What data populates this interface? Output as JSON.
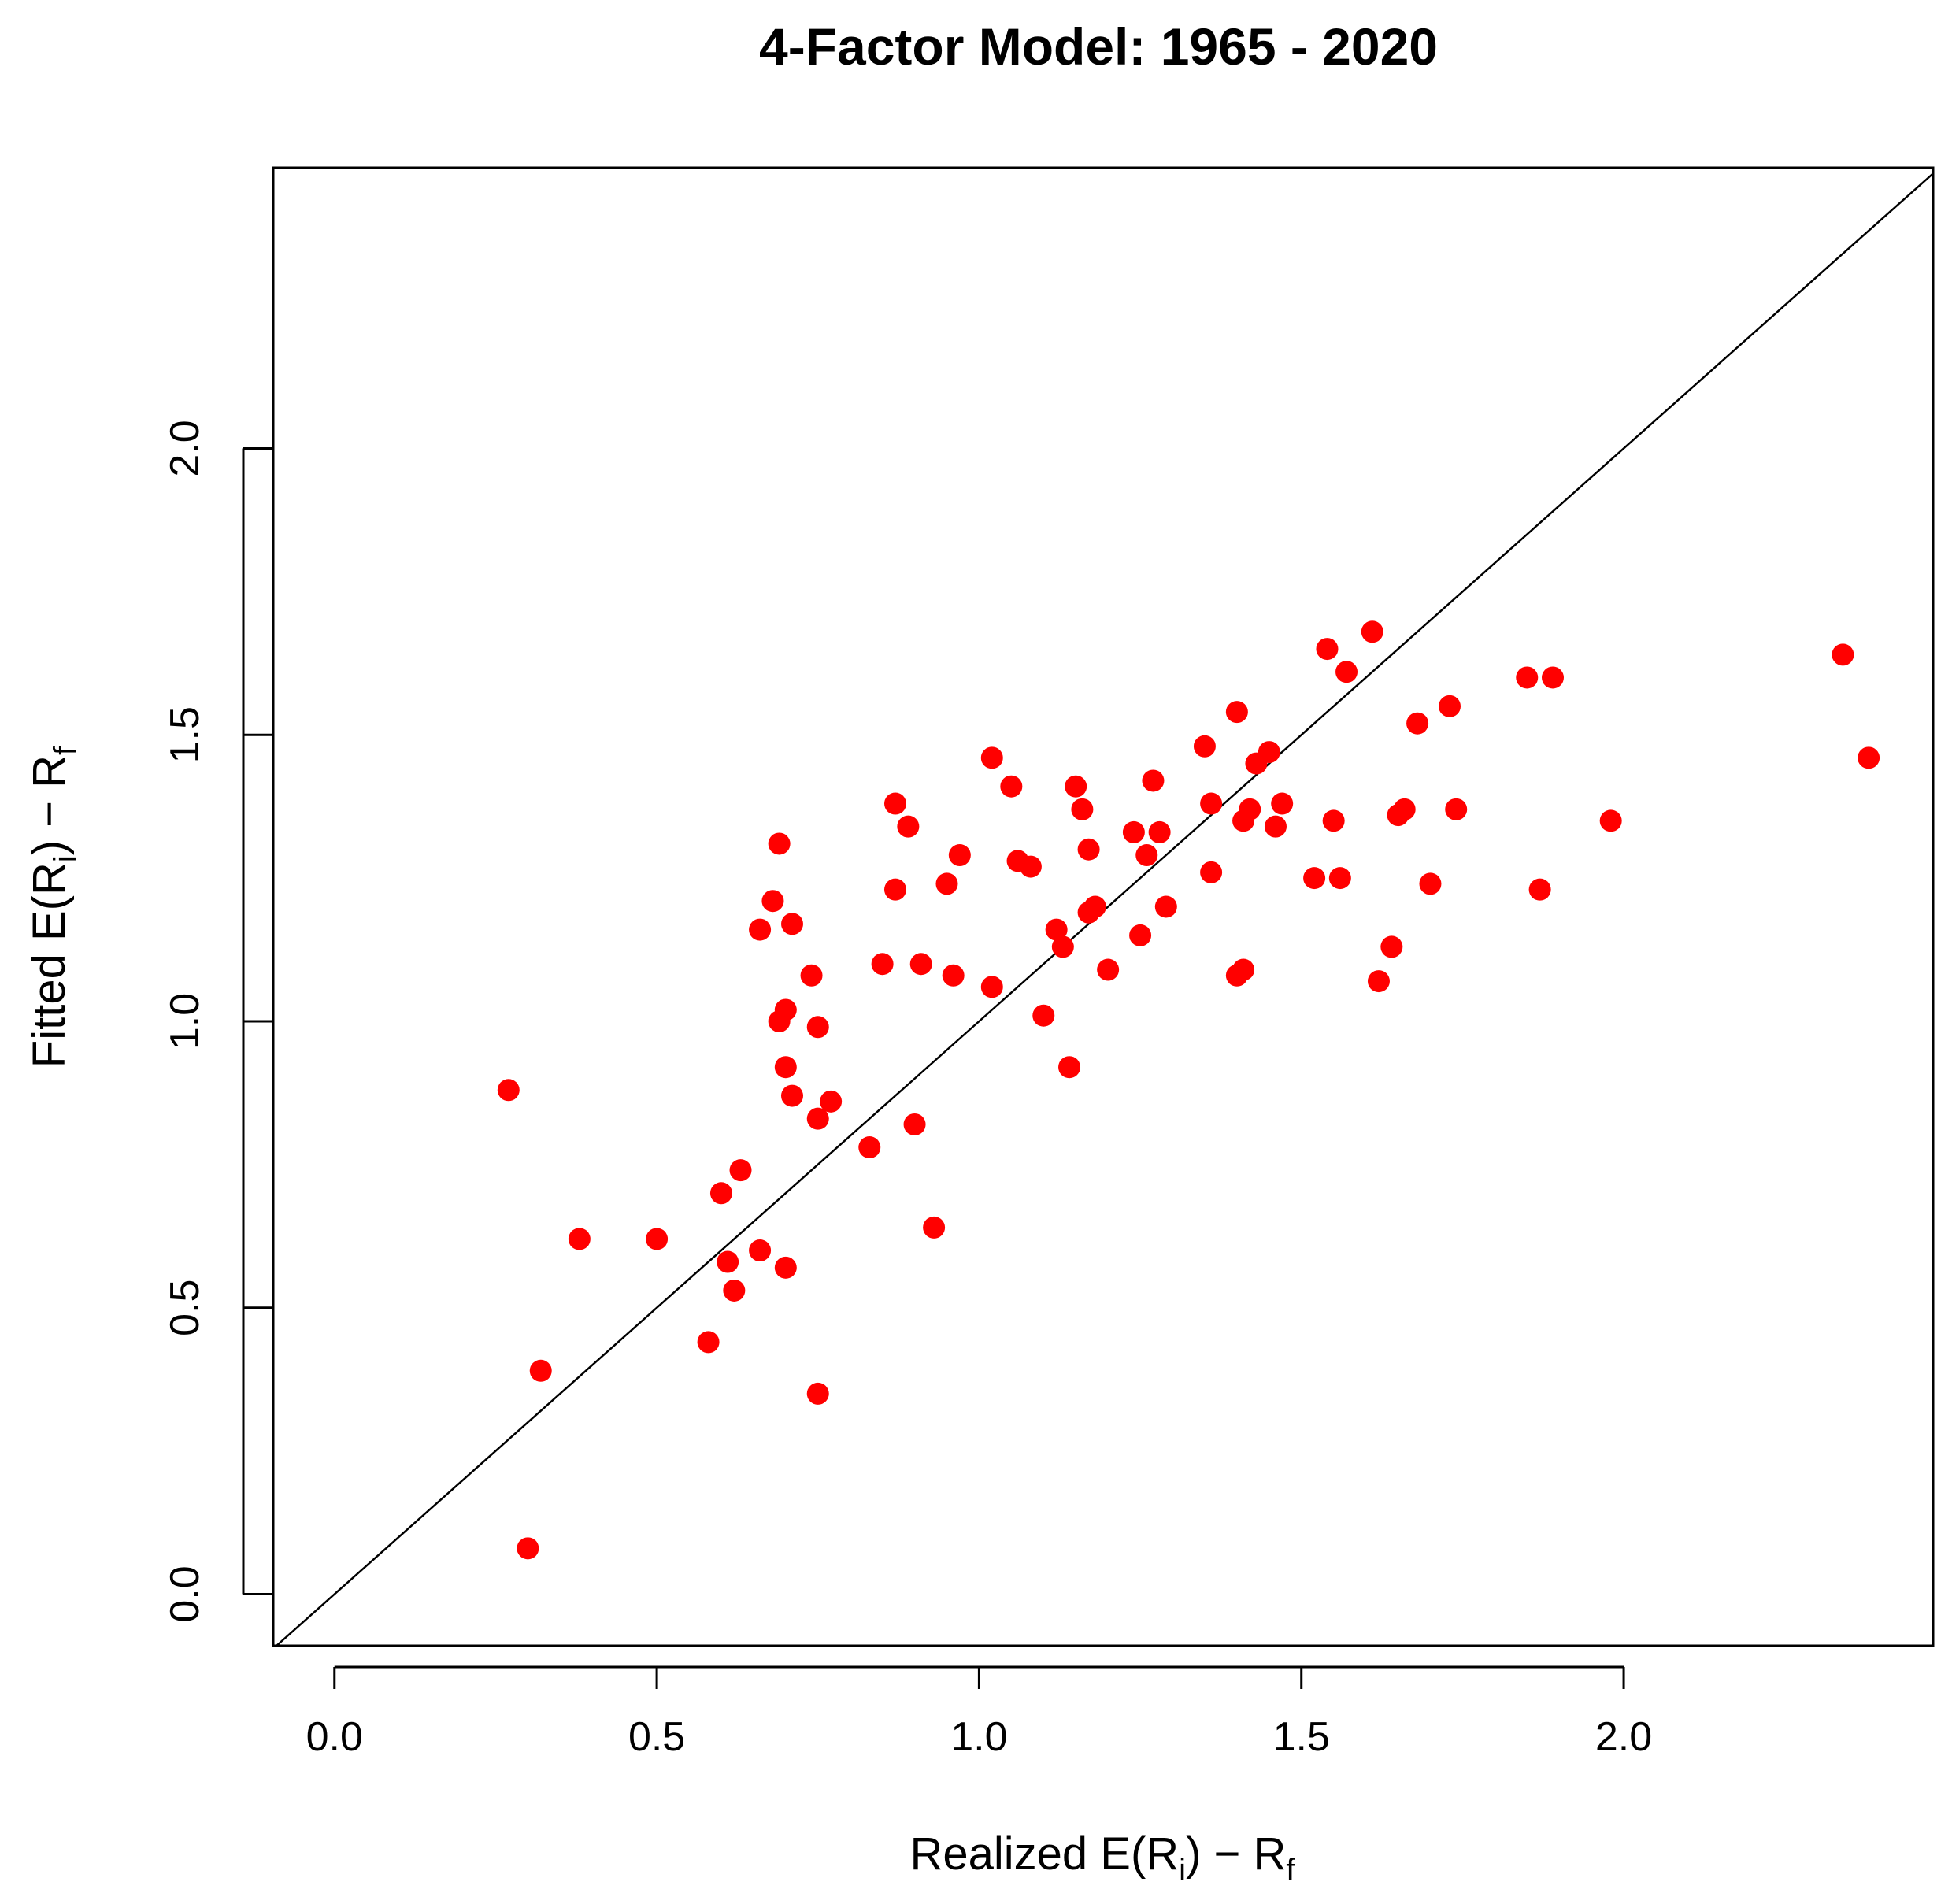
{
  "chart_data": {
    "type": "scatter",
    "title": "4-Factor Model: 1965 - 2020",
    "xlabel": {
      "prefix": "Realized E(R",
      "sub1": "i",
      "middle": ") − R",
      "sub2": "f"
    },
    "ylabel": {
      "prefix": "Fitted E(R",
      "sub1": "i",
      "middle": ") − R",
      "sub2": "f"
    },
    "xlim": [
      -0.095,
      2.48
    ],
    "ylim": [
      -0.09,
      2.49
    ],
    "x_ticks": [
      0.0,
      0.5,
      1.0,
      1.5,
      2.0
    ],
    "x_tick_labels": [
      "0.0",
      "0.5",
      "1.0",
      "1.5",
      "2.0"
    ],
    "y_ticks": [
      0.0,
      0.5,
      1.0,
      1.5,
      2.0
    ],
    "y_tick_labels": [
      "0.0",
      "0.5",
      "1.0",
      "1.5",
      "2.0"
    ],
    "grid": false,
    "reference_line": {
      "type": "identity",
      "slope": 1,
      "intercept": 0
    },
    "point_color": "#ff0000",
    "line_color": "#000000",
    "series": [
      {
        "points": [
          [
            0.27,
            0.88
          ],
          [
            0.3,
            0.08
          ],
          [
            0.32,
            0.39
          ],
          [
            0.38,
            0.62
          ],
          [
            0.5,
            0.62
          ],
          [
            0.58,
            0.44
          ],
          [
            0.6,
            0.7
          ],
          [
            0.61,
            0.58
          ],
          [
            0.62,
            0.53
          ],
          [
            0.63,
            0.74
          ],
          [
            0.66,
            1.16
          ],
          [
            0.66,
            0.6
          ],
          [
            0.68,
            1.21
          ],
          [
            0.69,
            1.31
          ],
          [
            0.69,
            1.0
          ],
          [
            0.7,
            0.92
          ],
          [
            0.7,
            1.02
          ],
          [
            0.7,
            0.57
          ],
          [
            0.71,
            0.87
          ],
          [
            0.71,
            1.17
          ],
          [
            0.74,
            1.08
          ],
          [
            0.75,
            0.99
          ],
          [
            0.75,
            0.83
          ],
          [
            0.75,
            0.35
          ],
          [
            0.77,
            0.86
          ],
          [
            0.83,
            0.78
          ],
          [
            0.85,
            1.1
          ],
          [
            0.87,
            1.38
          ],
          [
            0.87,
            1.23
          ],
          [
            0.89,
            1.34
          ],
          [
            0.9,
            0.82
          ],
          [
            0.91,
            1.1
          ],
          [
            0.93,
            0.64
          ],
          [
            0.95,
            1.24
          ],
          [
            0.96,
            1.08
          ],
          [
            0.97,
            1.29
          ],
          [
            1.02,
            1.46
          ],
          [
            1.02,
            1.06
          ],
          [
            1.05,
            1.41
          ],
          [
            1.06,
            1.28
          ],
          [
            1.08,
            1.27
          ],
          [
            1.1,
            1.01
          ],
          [
            1.12,
            1.16
          ],
          [
            1.13,
            1.13
          ],
          [
            1.14,
            0.92
          ],
          [
            1.15,
            1.41
          ],
          [
            1.16,
            1.37
          ],
          [
            1.17,
            1.3
          ],
          [
            1.17,
            1.19
          ],
          [
            1.18,
            1.2
          ],
          [
            1.2,
            1.09
          ],
          [
            1.24,
            1.33
          ],
          [
            1.25,
            1.15
          ],
          [
            1.26,
            1.29
          ],
          [
            1.27,
            1.42
          ],
          [
            1.28,
            1.33
          ],
          [
            1.29,
            1.2
          ],
          [
            1.35,
            1.48
          ],
          [
            1.36,
            1.38
          ],
          [
            1.36,
            1.26
          ],
          [
            1.4,
            1.54
          ],
          [
            1.4,
            1.08
          ],
          [
            1.41,
            1.09
          ],
          [
            1.41,
            1.35
          ],
          [
            1.42,
            1.37
          ],
          [
            1.43,
            1.45
          ],
          [
            1.45,
            1.47
          ],
          [
            1.46,
            1.34
          ],
          [
            1.47,
            1.38
          ],
          [
            1.52,
            1.25
          ],
          [
            1.54,
            1.65
          ],
          [
            1.55,
            1.35
          ],
          [
            1.56,
            1.25
          ],
          [
            1.57,
            1.61
          ],
          [
            1.61,
            1.68
          ],
          [
            1.62,
            1.07
          ],
          [
            1.64,
            1.13
          ],
          [
            1.65,
            1.36
          ],
          [
            1.66,
            1.37
          ],
          [
            1.68,
            1.52
          ],
          [
            1.7,
            1.24
          ],
          [
            1.73,
            1.55
          ],
          [
            1.74,
            1.37
          ],
          [
            1.85,
            1.6
          ],
          [
            1.87,
            1.23
          ],
          [
            1.89,
            1.6
          ],
          [
            1.98,
            1.35
          ],
          [
            2.34,
            1.64
          ],
          [
            2.38,
            1.46
          ]
        ]
      }
    ]
  }
}
